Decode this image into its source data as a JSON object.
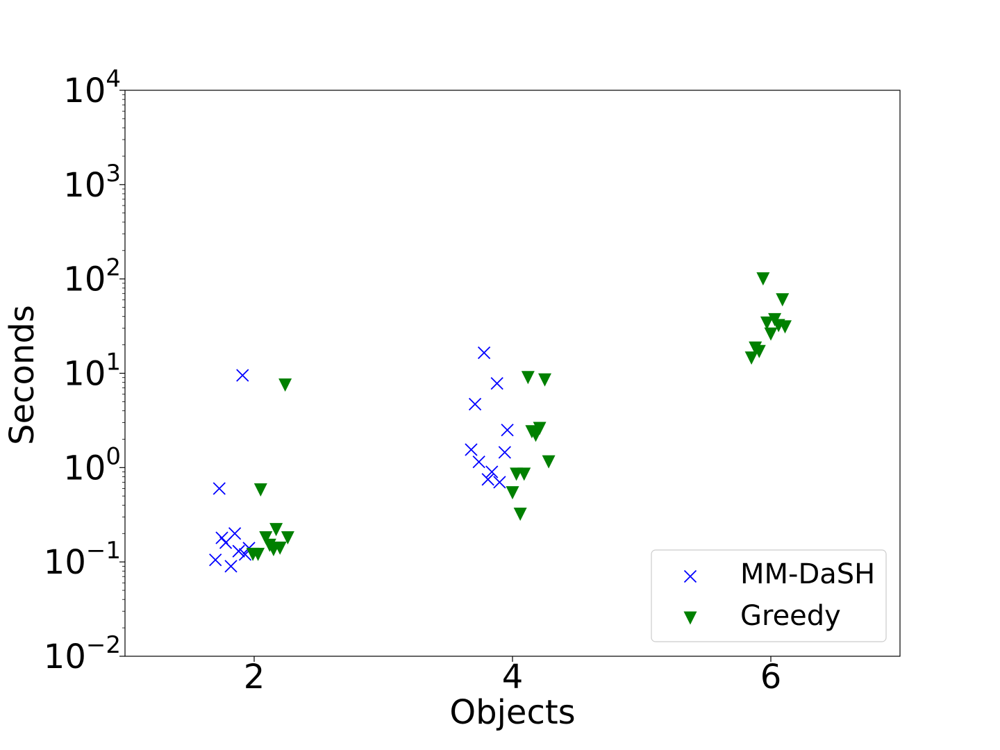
{
  "chart_data": {
    "type": "scatter",
    "title": "",
    "xlabel": "Objects",
    "ylabel": "Seconds",
    "xlim": [
      1,
      7
    ],
    "ylim": [
      0.01,
      10000
    ],
    "yscale": "log",
    "xticks": [
      2,
      4,
      6
    ],
    "xtick_labels": [
      "2",
      "4",
      "6"
    ],
    "yticks": [
      {
        "value": 0.01,
        "base": "10",
        "exp": "−2"
      },
      {
        "value": 0.1,
        "base": "10",
        "exp": "−1"
      },
      {
        "value": 1,
        "base": "10",
        "exp": "0"
      },
      {
        "value": 10,
        "base": "10",
        "exp": "1"
      },
      {
        "value": 100,
        "base": "10",
        "exp": "2"
      },
      {
        "value": 1000,
        "base": "10",
        "exp": "3"
      },
      {
        "value": 10000,
        "base": "10",
        "exp": "4"
      }
    ],
    "grid": false,
    "legend_position": "lower-right",
    "series": [
      {
        "name": "MM-DaSH",
        "marker": "x",
        "color": "#0000ff",
        "points": [
          {
            "x": 1.7,
            "y": 0.105
          },
          {
            "x": 1.73,
            "y": 0.6
          },
          {
            "x": 1.75,
            "y": 0.18
          },
          {
            "x": 1.78,
            "y": 0.16
          },
          {
            "x": 1.82,
            "y": 0.09
          },
          {
            "x": 1.85,
            "y": 0.2
          },
          {
            "x": 1.88,
            "y": 0.13
          },
          {
            "x": 1.91,
            "y": 9.5
          },
          {
            "x": 1.93,
            "y": 0.12
          },
          {
            "x": 1.96,
            "y": 0.14
          },
          {
            "x": 3.68,
            "y": 1.55
          },
          {
            "x": 3.71,
            "y": 4.7
          },
          {
            "x": 3.74,
            "y": 1.15
          },
          {
            "x": 3.78,
            "y": 16.5
          },
          {
            "x": 3.81,
            "y": 0.75
          },
          {
            "x": 3.84,
            "y": 0.9
          },
          {
            "x": 3.88,
            "y": 7.8
          },
          {
            "x": 3.9,
            "y": 0.7
          },
          {
            "x": 3.94,
            "y": 1.45
          },
          {
            "x": 3.96,
            "y": 2.5
          }
        ]
      },
      {
        "name": "Greedy",
        "marker": "triangle-down",
        "color": "#008000",
        "points": [
          {
            "x": 1.99,
            "y": 0.12
          },
          {
            "x": 2.03,
            "y": 0.12
          },
          {
            "x": 2.05,
            "y": 0.58
          },
          {
            "x": 2.09,
            "y": 0.18
          },
          {
            "x": 2.12,
            "y": 0.15
          },
          {
            "x": 2.15,
            "y": 0.135
          },
          {
            "x": 2.17,
            "y": 0.22
          },
          {
            "x": 2.2,
            "y": 0.14
          },
          {
            "x": 2.24,
            "y": 7.5
          },
          {
            "x": 2.26,
            "y": 0.18
          },
          {
            "x": 4.0,
            "y": 0.54
          },
          {
            "x": 4.03,
            "y": 0.85
          },
          {
            "x": 4.06,
            "y": 0.32
          },
          {
            "x": 4.09,
            "y": 0.85
          },
          {
            "x": 4.12,
            "y": 9.0
          },
          {
            "x": 4.15,
            "y": 2.4
          },
          {
            "x": 4.18,
            "y": 2.2
          },
          {
            "x": 4.21,
            "y": 2.6
          },
          {
            "x": 4.25,
            "y": 8.5
          },
          {
            "x": 4.28,
            "y": 1.15
          },
          {
            "x": 5.85,
            "y": 14.5
          },
          {
            "x": 5.88,
            "y": 18.5
          },
          {
            "x": 5.91,
            "y": 17.0
          },
          {
            "x": 5.94,
            "y": 100
          },
          {
            "x": 5.97,
            "y": 34
          },
          {
            "x": 6.0,
            "y": 26
          },
          {
            "x": 6.03,
            "y": 37
          },
          {
            "x": 6.06,
            "y": 32
          },
          {
            "x": 6.09,
            "y": 60
          },
          {
            "x": 6.11,
            "y": 31
          }
        ]
      }
    ]
  }
}
